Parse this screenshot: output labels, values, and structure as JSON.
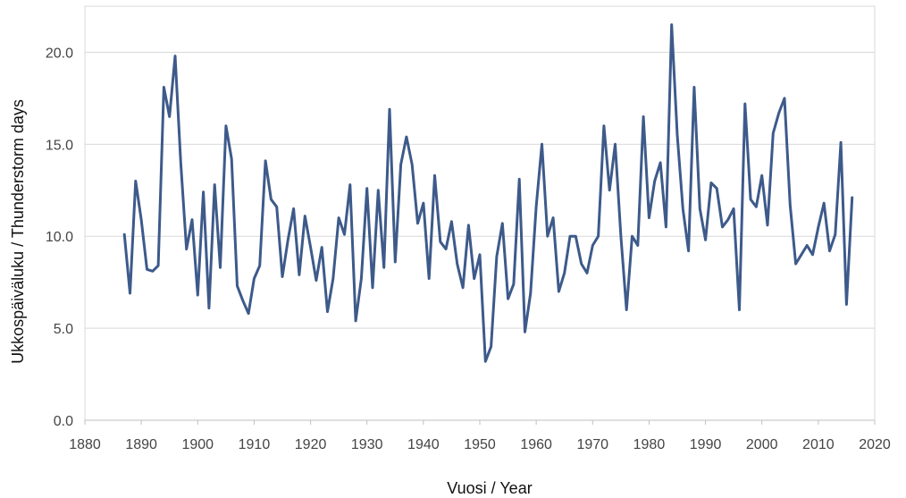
{
  "chart_data": {
    "type": "line",
    "title": "",
    "xlabel": "Vuosi / Year",
    "ylabel": "Ukkospäiväluku / Thunderstorm days",
    "xlim": [
      1880,
      2020
    ],
    "ylim": [
      0,
      22.5
    ],
    "xticks": [
      1880,
      1890,
      1900,
      1910,
      1920,
      1930,
      1940,
      1950,
      1960,
      1970,
      1980,
      1990,
      2000,
      2010,
      2020
    ],
    "xtick_labels": [
      "1880",
      "1890",
      "1900",
      "1910",
      "1920",
      "1930",
      "1940",
      "1950",
      "1960",
      "1970",
      "1980",
      "1990",
      "2000",
      "2010",
      "2020"
    ],
    "yticks": [
      0,
      5,
      10,
      15,
      20
    ],
    "ytick_labels": [
      "0.0",
      "5.0",
      "10.0",
      "15.0",
      "20.0"
    ],
    "grid": "horizontal",
    "legend": "none",
    "colors": {
      "line": "#3d5a8a",
      "grid": "#d9d9d9",
      "frame": "#d9d9d9",
      "axis": "#bfbfbf"
    },
    "series": [
      {
        "x": [
          1887,
          1888,
          1889,
          1890,
          1891,
          1892,
          1893,
          1894,
          1895,
          1896,
          1897,
          1898,
          1899,
          1900,
          1901,
          1902,
          1903,
          1904,
          1905,
          1906,
          1907,
          1908,
          1909,
          1910,
          1911,
          1912,
          1913,
          1914,
          1915,
          1916,
          1917,
          1918,
          1919,
          1920,
          1921,
          1922,
          1923,
          1924,
          1925,
          1926,
          1927,
          1928,
          1929,
          1930,
          1931,
          1932,
          1933,
          1934,
          1935,
          1936,
          1937,
          1938,
          1939,
          1940,
          1941,
          1942,
          1943,
          1944,
          1945,
          1946,
          1947,
          1948,
          1949,
          1950,
          1951,
          1952,
          1953,
          1954,
          1955,
          1956,
          1957,
          1958,
          1959,
          1960,
          1961,
          1962,
          1963,
          1964,
          1965,
          1966,
          1967,
          1968,
          1969,
          1970,
          1971,
          1972,
          1973,
          1974,
          1975,
          1976,
          1977,
          1978,
          1979,
          1980,
          1981,
          1982,
          1983,
          1984,
          1985,
          1986,
          1987,
          1988,
          1989,
          1990,
          1991,
          1992,
          1993,
          1994,
          1995,
          1996,
          1997,
          1998,
          1999,
          2000,
          2001,
          2002,
          2003,
          2004,
          2005,
          2006,
          2007,
          2008,
          2009,
          2010,
          2011,
          2012,
          2013,
          2014,
          2015,
          2016
        ],
        "values": [
          10.1,
          6.9,
          13.0,
          10.9,
          8.2,
          8.1,
          8.4,
          18.1,
          16.5,
          19.8,
          14.0,
          9.3,
          10.9,
          6.8,
          12.4,
          6.1,
          12.8,
          8.3,
          16.0,
          14.2,
          7.3,
          6.5,
          5.8,
          7.7,
          8.4,
          14.1,
          12.0,
          11.6,
          7.8,
          9.8,
          11.5,
          7.9,
          11.1,
          9.4,
          7.6,
          9.4,
          5.9,
          7.7,
          11.0,
          10.1,
          12.8,
          5.4,
          7.7,
          12.6,
          7.2,
          12.5,
          8.3,
          16.9,
          8.6,
          13.9,
          15.4,
          13.9,
          10.7,
          11.8,
          7.7,
          13.3,
          9.7,
          9.3,
          10.8,
          8.5,
          7.2,
          10.6,
          7.7,
          9.0,
          3.2,
          4.0,
          8.9,
          10.7,
          6.6,
          7.4,
          13.1,
          4.8,
          6.9,
          11.6,
          15.0,
          10.0,
          11.0,
          7.0,
          8.0,
          10.0,
          10.0,
          8.5,
          8.0,
          9.5,
          10.0,
          16.0,
          12.5,
          15.0,
          10.0,
          6.0,
          10.0,
          9.5,
          16.5,
          11.0,
          13.0,
          14.0,
          10.5,
          21.5,
          15.5,
          11.5,
          9.2,
          18.1,
          11.5,
          9.8,
          12.9,
          12.6,
          10.5,
          10.9,
          11.5,
          6.0,
          17.2,
          12.0,
          11.6,
          13.3,
          10.6,
          15.6,
          16.7,
          17.5,
          11.7,
          8.5,
          9.0,
          9.5,
          9.0,
          10.5,
          11.8,
          9.2,
          10.1,
          15.1,
          6.3,
          12.1
        ]
      }
    ]
  }
}
